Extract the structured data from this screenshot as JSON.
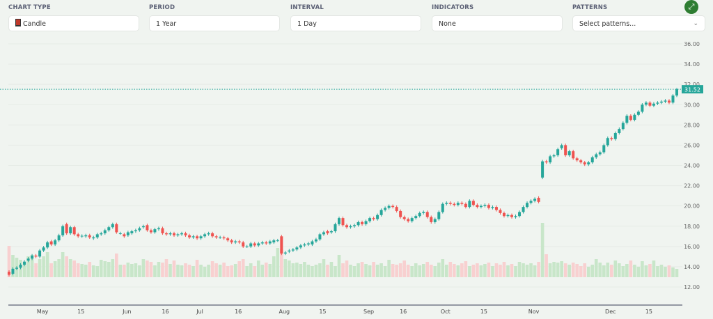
{
  "controls": {
    "chart_type": {
      "label": "CHART TYPE",
      "value": "Candle",
      "icon": "candle-icon"
    },
    "period": {
      "label": "PERIOD",
      "value": "1 Year"
    },
    "interval": {
      "label": "INTERVAL",
      "value": "1 Day"
    },
    "indicators": {
      "label": "INDICATORS",
      "value": "None"
    },
    "patterns": {
      "label": "PATTERNS",
      "placeholder": "Select patterns..."
    },
    "fullscreen_icon": "expand-icon"
  },
  "colors": {
    "up": "#26a69a",
    "down": "#ef5350",
    "up_volume": "#c8e6c9",
    "down_volume": "#f8d0d0",
    "accent": "#2e7d32"
  },
  "chart_data": {
    "type": "candlestick",
    "last_price": "31.52",
    "ylim": [
      12,
      36
    ],
    "y_ticks": [
      "12.00",
      "14.00",
      "16.00",
      "18.00",
      "20.00",
      "22.00",
      "24.00",
      "26.00",
      "28.00",
      "30.00",
      "32.00",
      "34.00",
      "36.00"
    ],
    "x_ticks": [
      {
        "label": "May",
        "date": "05-01"
      },
      {
        "label": "15",
        "date": "05-15"
      },
      {
        "label": "Jun",
        "date": "06-03"
      },
      {
        "label": "16",
        "date": "06-17"
      },
      {
        "label": "Jul",
        "date": "07-01"
      },
      {
        "label": "16",
        "date": "07-16"
      },
      {
        "label": "Aug",
        "date": "08-01"
      },
      {
        "label": "15",
        "date": "08-15"
      },
      {
        "label": "Sep",
        "date": "09-03"
      },
      {
        "label": "16",
        "date": "09-16"
      },
      {
        "label": "Oct",
        "date": "10-01"
      },
      {
        "label": "15",
        "date": "10-15"
      },
      {
        "label": "Nov",
        "date": "11-01"
      },
      {
        "label": "Dec",
        "date": "12-02"
      },
      {
        "label": "15",
        "date": "12-16"
      }
    ],
    "fields": [
      "date",
      "open",
      "close",
      "volume"
    ],
    "candles": [
      [
        "04-19",
        13.5,
        13.2,
        4.5
      ],
      [
        "04-22",
        13.3,
        13.8,
        3.2
      ],
      [
        "04-23",
        13.8,
        13.9,
        2.8
      ],
      [
        "04-24",
        13.9,
        14.2,
        2.5
      ],
      [
        "04-25",
        14.2,
        14.5,
        2.2
      ],
      [
        "04-26",
        14.6,
        14.8,
        3.0
      ],
      [
        "04-29",
        14.8,
        15.1,
        3.2
      ],
      [
        "04-30",
        15.1,
        15.0,
        2.0
      ],
      [
        "05-01",
        15.0,
        15.6,
        2.6
      ],
      [
        "05-02",
        15.6,
        15.9,
        3.0
      ],
      [
        "05-03",
        15.9,
        16.4,
        3.6
      ],
      [
        "05-06",
        16.5,
        16.2,
        2.0
      ],
      [
        "05-07",
        16.2,
        16.6,
        2.3
      ],
      [
        "05-08",
        16.6,
        17.1,
        2.6
      ],
      [
        "05-09",
        17.1,
        18.0,
        3.6
      ],
      [
        "05-10",
        18.2,
        17.3,
        3.0
      ],
      [
        "05-13",
        17.3,
        17.9,
        2.6
      ],
      [
        "05-14",
        17.9,
        17.2,
        2.4
      ],
      [
        "05-15",
        17.2,
        17.0,
        2.0
      ],
      [
        "05-16",
        17.0,
        17.05,
        1.9
      ],
      [
        "05-17",
        17.0,
        17.1,
        1.8
      ],
      [
        "05-20",
        17.1,
        16.9,
        2.2
      ],
      [
        "05-21",
        16.8,
        16.9,
        1.7
      ],
      [
        "05-22",
        16.9,
        17.2,
        1.6
      ],
      [
        "05-23",
        17.2,
        17.3,
        2.5
      ],
      [
        "05-24",
        17.3,
        17.6,
        2.3
      ],
      [
        "05-28",
        17.6,
        17.9,
        2.2
      ],
      [
        "05-29",
        17.9,
        18.2,
        2.6
      ],
      [
        "05-30",
        18.2,
        17.4,
        3.4
      ],
      [
        "05-31",
        17.3,
        17.3,
        1.8
      ],
      [
        "06-03",
        17.2,
        17.0,
        1.8
      ],
      [
        "06-04",
        17.1,
        17.4,
        2.1
      ],
      [
        "06-05",
        17.3,
        17.5,
        1.9
      ],
      [
        "06-06",
        17.5,
        17.6,
        2.0
      ],
      [
        "06-07",
        17.6,
        17.8,
        1.7
      ],
      [
        "06-10",
        17.9,
        18.0,
        2.6
      ],
      [
        "06-11",
        18.1,
        17.6,
        2.4
      ],
      [
        "06-12",
        17.6,
        17.4,
        2.2
      ],
      [
        "06-13",
        17.4,
        17.7,
        1.7
      ],
      [
        "06-14",
        17.7,
        17.8,
        2.2
      ],
      [
        "06-17",
        17.8,
        17.3,
        2.1
      ],
      [
        "06-18",
        17.3,
        17.2,
        2.6
      ],
      [
        "06-20",
        17.2,
        17.3,
        1.9
      ],
      [
        "06-21",
        17.3,
        17.1,
        2.4
      ],
      [
        "06-24",
        17.1,
        17.2,
        1.8
      ],
      [
        "06-25",
        17.2,
        17.3,
        1.7
      ],
      [
        "06-26",
        17.3,
        17.1,
        2.0
      ],
      [
        "06-27",
        17.1,
        16.9,
        1.8
      ],
      [
        "06-28",
        16.9,
        17.0,
        1.6
      ],
      [
        "07-01",
        17.0,
        16.8,
        2.5
      ],
      [
        "07-02",
        16.8,
        17.0,
        1.8
      ],
      [
        "07-03",
        17.0,
        17.2,
        1.5
      ],
      [
        "07-05",
        17.2,
        17.3,
        1.8
      ],
      [
        "07-08",
        17.3,
        17.0,
        2.3
      ],
      [
        "07-09",
        17.0,
        16.9,
        2.0
      ],
      [
        "07-10",
        16.9,
        16.9,
        1.8
      ],
      [
        "07-11",
        16.9,
        16.8,
        2.1
      ],
      [
        "07-12",
        16.8,
        16.6,
        1.6
      ],
      [
        "07-15",
        16.6,
        16.4,
        1.7
      ],
      [
        "07-16",
        16.4,
        16.5,
        1.9
      ],
      [
        "07-17",
        16.5,
        16.4,
        2.3
      ],
      [
        "07-18",
        16.4,
        16.0,
        2.6
      ],
      [
        "07-19",
        16.0,
        16.0,
        1.6
      ],
      [
        "07-22",
        16.0,
        16.3,
        2.0
      ],
      [
        "07-23",
        16.3,
        16.1,
        1.6
      ],
      [
        "07-24",
        16.1,
        16.3,
        2.4
      ],
      [
        "07-25",
        16.3,
        16.4,
        1.8
      ],
      [
        "07-26",
        16.4,
        16.3,
        2.1
      ],
      [
        "07-29",
        16.3,
        16.5,
        1.9
      ],
      [
        "07-30",
        16.4,
        16.6,
        3.0
      ],
      [
        "07-31",
        16.6,
        16.6,
        4.2
      ],
      [
        "08-01",
        17.0,
        15.3,
        4.0
      ],
      [
        "08-02",
        15.3,
        15.4,
        2.6
      ],
      [
        "08-05",
        15.5,
        15.6,
        2.4
      ],
      [
        "08-06",
        15.6,
        15.7,
        2.0
      ],
      [
        "08-07",
        15.7,
        15.9,
        2.1
      ],
      [
        "08-08",
        15.9,
        16.1,
        1.9
      ],
      [
        "08-09",
        16.1,
        16.2,
        2.2
      ],
      [
        "08-12",
        16.2,
        16.3,
        1.8
      ],
      [
        "08-13",
        16.2,
        16.5,
        1.6
      ],
      [
        "08-14",
        16.5,
        16.7,
        1.8
      ],
      [
        "08-15",
        16.7,
        17.2,
        2.0
      ],
      [
        "08-16",
        17.2,
        17.4,
        2.6
      ],
      [
        "08-19",
        17.5,
        17.3,
        1.8
      ],
      [
        "08-20",
        17.4,
        17.5,
        2.2
      ],
      [
        "08-21",
        17.5,
        18.2,
        1.6
      ],
      [
        "08-22",
        18.2,
        18.8,
        3.2
      ],
      [
        "08-23",
        18.8,
        18.1,
        2.0
      ],
      [
        "08-26",
        18.1,
        17.9,
        2.4
      ],
      [
        "08-27",
        17.9,
        18.0,
        1.8
      ],
      [
        "08-28",
        18.0,
        18.1,
        1.6
      ],
      [
        "08-29",
        18.1,
        18.4,
        2.0
      ],
      [
        "08-30",
        18.4,
        18.2,
        2.2
      ],
      [
        "09-03",
        18.2,
        18.5,
        1.9
      ],
      [
        "09-04",
        18.5,
        18.8,
        1.7
      ],
      [
        "09-05",
        18.8,
        18.7,
        2.2
      ],
      [
        "09-06",
        18.7,
        19.1,
        1.8
      ],
      [
        "09-09",
        19.1,
        19.6,
        2.0
      ],
      [
        "09-10",
        19.6,
        19.8,
        1.6
      ],
      [
        "09-11",
        19.8,
        20.0,
        2.5
      ],
      [
        "09-12",
        20.0,
        19.9,
        1.9
      ],
      [
        "09-13",
        19.9,
        19.5,
        1.8
      ],
      [
        "09-16",
        19.5,
        18.9,
        2.0
      ],
      [
        "09-17",
        18.9,
        18.7,
        2.4
      ],
      [
        "09-18",
        18.7,
        18.5,
        1.8
      ],
      [
        "09-19",
        18.5,
        18.8,
        1.6
      ],
      [
        "09-20",
        18.8,
        19.0,
        2.0
      ],
      [
        "09-23",
        19.0,
        19.3,
        1.7
      ],
      [
        "09-24",
        19.3,
        19.4,
        1.9
      ],
      [
        "09-25",
        19.4,
        18.9,
        2.2
      ],
      [
        "09-26",
        18.9,
        18.4,
        1.8
      ],
      [
        "09-27",
        18.4,
        18.7,
        1.6
      ],
      [
        "09-30",
        18.7,
        19.4,
        2.1
      ],
      [
        "10-01",
        19.4,
        20.2,
        2.6
      ],
      [
        "10-02",
        20.2,
        20.3,
        1.8
      ],
      [
        "10-03",
        20.3,
        20.2,
        2.2
      ],
      [
        "10-04",
        20.2,
        20.1,
        1.9
      ],
      [
        "10-07",
        20.1,
        20.3,
        1.7
      ],
      [
        "10-08",
        20.3,
        20.2,
        2.0
      ],
      [
        "10-09",
        20.2,
        19.9,
        2.3
      ],
      [
        "10-10",
        19.9,
        20.5,
        1.6
      ],
      [
        "10-11",
        20.5,
        20.1,
        1.8
      ],
      [
        "10-14",
        20.1,
        19.9,
        2.0
      ],
      [
        "10-15",
        19.9,
        20.0,
        1.7
      ],
      [
        "10-16",
        20.0,
        20.1,
        1.9
      ],
      [
        "10-17",
        20.1,
        19.8,
        2.1
      ],
      [
        "10-18",
        19.8,
        19.9,
        1.6
      ],
      [
        "10-21",
        19.9,
        19.6,
        2.0
      ],
      [
        "10-22",
        19.6,
        19.3,
        1.8
      ],
      [
        "10-23",
        19.3,
        19.0,
        2.2
      ],
      [
        "10-24",
        19.0,
        19.1,
        1.7
      ],
      [
        "10-25",
        19.1,
        18.9,
        1.9
      ],
      [
        "10-28",
        18.9,
        19.0,
        1.6
      ],
      [
        "10-29",
        19.0,
        19.4,
        2.2
      ],
      [
        "10-30",
        19.4,
        19.9,
        2.0
      ],
      [
        "10-31",
        19.9,
        20.3,
        1.8
      ],
      [
        "11-01",
        20.3,
        20.5,
        2.0
      ],
      [
        "11-04",
        20.5,
        20.7,
        1.7
      ],
      [
        "11-05",
        20.8,
        20.4,
        2.2
      ],
      [
        "11-06",
        22.8,
        24.4,
        7.8
      ],
      [
        "11-07",
        24.4,
        24.3,
        3.3
      ],
      [
        "11-08",
        24.3,
        24.9,
        2.0
      ],
      [
        "11-11",
        24.9,
        25.0,
        2.2
      ],
      [
        "11-12",
        25.0,
        25.6,
        2.1
      ],
      [
        "11-13",
        25.7,
        26.0,
        2.3
      ],
      [
        "11-14",
        26.0,
        25.0,
        2.0
      ],
      [
        "11-15",
        25.0,
        25.4,
        1.8
      ],
      [
        "11-18",
        25.4,
        24.7,
        2.1
      ],
      [
        "11-19",
        24.7,
        24.5,
        1.9
      ],
      [
        "11-20",
        24.5,
        24.3,
        1.6
      ],
      [
        "11-21",
        24.3,
        24.1,
        2.0
      ],
      [
        "11-22",
        24.1,
        24.3,
        1.5
      ],
      [
        "11-25",
        24.3,
        24.8,
        1.8
      ],
      [
        "11-26",
        24.8,
        25.1,
        2.6
      ],
      [
        "11-27",
        25.1,
        25.3,
        2.1
      ],
      [
        "11-29",
        25.3,
        26.0,
        1.7
      ],
      [
        "12-02",
        26.0,
        26.7,
        2.1
      ],
      [
        "12-03",
        26.7,
        26.6,
        1.8
      ],
      [
        "12-04",
        26.6,
        27.2,
        2.4
      ],
      [
        "12-05",
        27.2,
        27.6,
        2.0
      ],
      [
        "12-06",
        27.6,
        28.2,
        1.6
      ],
      [
        "12-09",
        28.2,
        28.9,
        1.9
      ],
      [
        "12-10",
        28.9,
        28.5,
        2.4
      ],
      [
        "12-11",
        28.5,
        29.0,
        1.8
      ],
      [
        "12-12",
        29.0,
        29.3,
        1.5
      ],
      [
        "12-13",
        29.3,
        30.0,
        2.3
      ],
      [
        "12-16",
        30.0,
        30.2,
        1.7
      ],
      [
        "12-17",
        30.2,
        29.9,
        1.9
      ],
      [
        "12-18",
        29.9,
        30.1,
        2.4
      ],
      [
        "12-19",
        30.1,
        30.2,
        1.6
      ],
      [
        "12-20",
        30.2,
        30.3,
        1.8
      ],
      [
        "12-23",
        30.3,
        30.4,
        1.5
      ],
      [
        "12-24",
        30.4,
        30.2,
        1.7
      ],
      [
        "12-26",
        30.2,
        30.9,
        1.4
      ],
      [
        "12-27",
        30.9,
        31.52,
        1.2
      ]
    ]
  }
}
